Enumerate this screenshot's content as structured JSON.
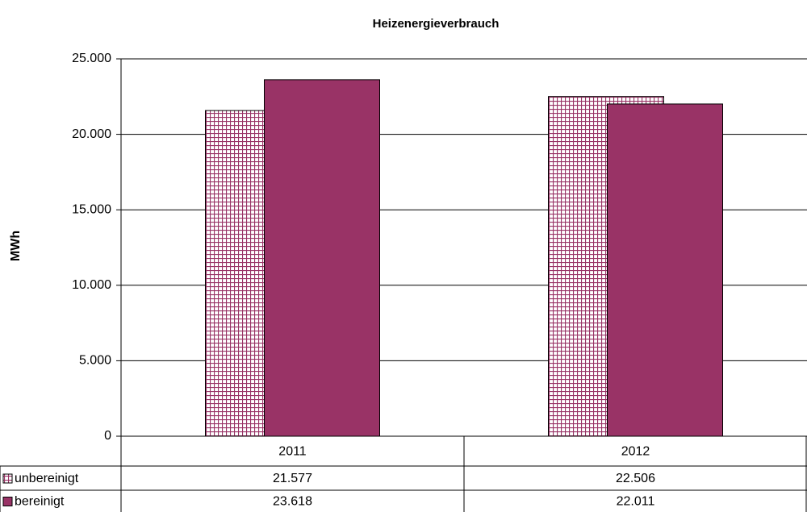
{
  "chart_data": {
    "type": "bar",
    "title": "Heizenergieverbrauch",
    "y_label": "MWh",
    "categories": [
      "2011",
      "2012"
    ],
    "series": [
      {
        "name": "unbereinigt",
        "color": "#993366",
        "pattern": "grid",
        "values": [
          21577,
          22506
        ],
        "value_labels": [
          "21.577",
          "22.506"
        ]
      },
      {
        "name": "bereinigt",
        "color": "#993366",
        "values": [
          23618,
          22011
        ],
        "value_labels": [
          "23.618",
          "22.011"
        ]
      }
    ],
    "ylim": [
      0,
      25000
    ],
    "yticks": [
      0,
      {
        "value": 5000,
        "label": "5.000"
      },
      {
        "value": 10000,
        "label": "10.000"
      },
      {
        "value": 15000,
        "label": "15.000"
      },
      {
        "value": 20000,
        "label": "20.000"
      },
      {
        "value": 25000,
        "label": "25.000"
      }
    ],
    "grid": true
  }
}
